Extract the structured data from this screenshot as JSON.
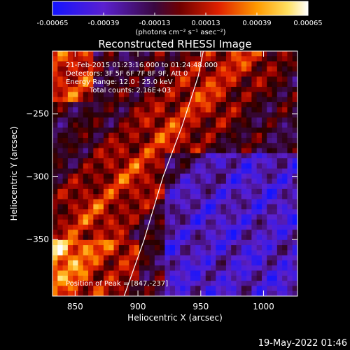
{
  "chart_data": {
    "type": "heatmap",
    "title": "Reconstructed RHESSI Image",
    "xlabel": "Heliocentric X (arcsec)",
    "ylabel": "Heliocentric Y (arcsec)",
    "xlim": [
      832,
      1027
    ],
    "ylim": [
      -395,
      -200
    ],
    "x_ticks": [
      850,
      900,
      950,
      1000
    ],
    "y_ticks": [
      -250,
      -300,
      -350
    ],
    "colorbar": {
      "range": [
        -0.00065,
        0.00065
      ],
      "tick_labels": [
        "-0.00065",
        "-0.00039",
        "-0.00013",
        "0.00013",
        "0.00039",
        "0.00065"
      ],
      "units_label": "(photons cm⁻² s⁻¹ asec⁻²)",
      "colors": [
        "#1010ff",
        "#8a2be2",
        "#200020",
        "#ff2000",
        "#ff9900",
        "#ffffff"
      ]
    },
    "annotations": [
      "21-Feb-2015 01:23:16.000 to 01:24:48.000",
      "Detectors: 3F 5F 6F 7F 8F 9F, Att 0",
      "Energy Range: 12.0 - 25.0 keV",
      "Total counts: 2.16E+03",
      "Position of Peak = [847,-237]"
    ],
    "peak": {
      "x": 847,
      "y": -237
    },
    "limb_curve": [
      [
        889,
        -395
      ],
      [
        905,
        -350
      ],
      [
        920,
        -300
      ],
      [
        935,
        -260
      ],
      [
        948,
        -220
      ],
      [
        952,
        -200
      ]
    ]
  },
  "footer": {
    "timestamp": "19-May-2022 01:46"
  }
}
